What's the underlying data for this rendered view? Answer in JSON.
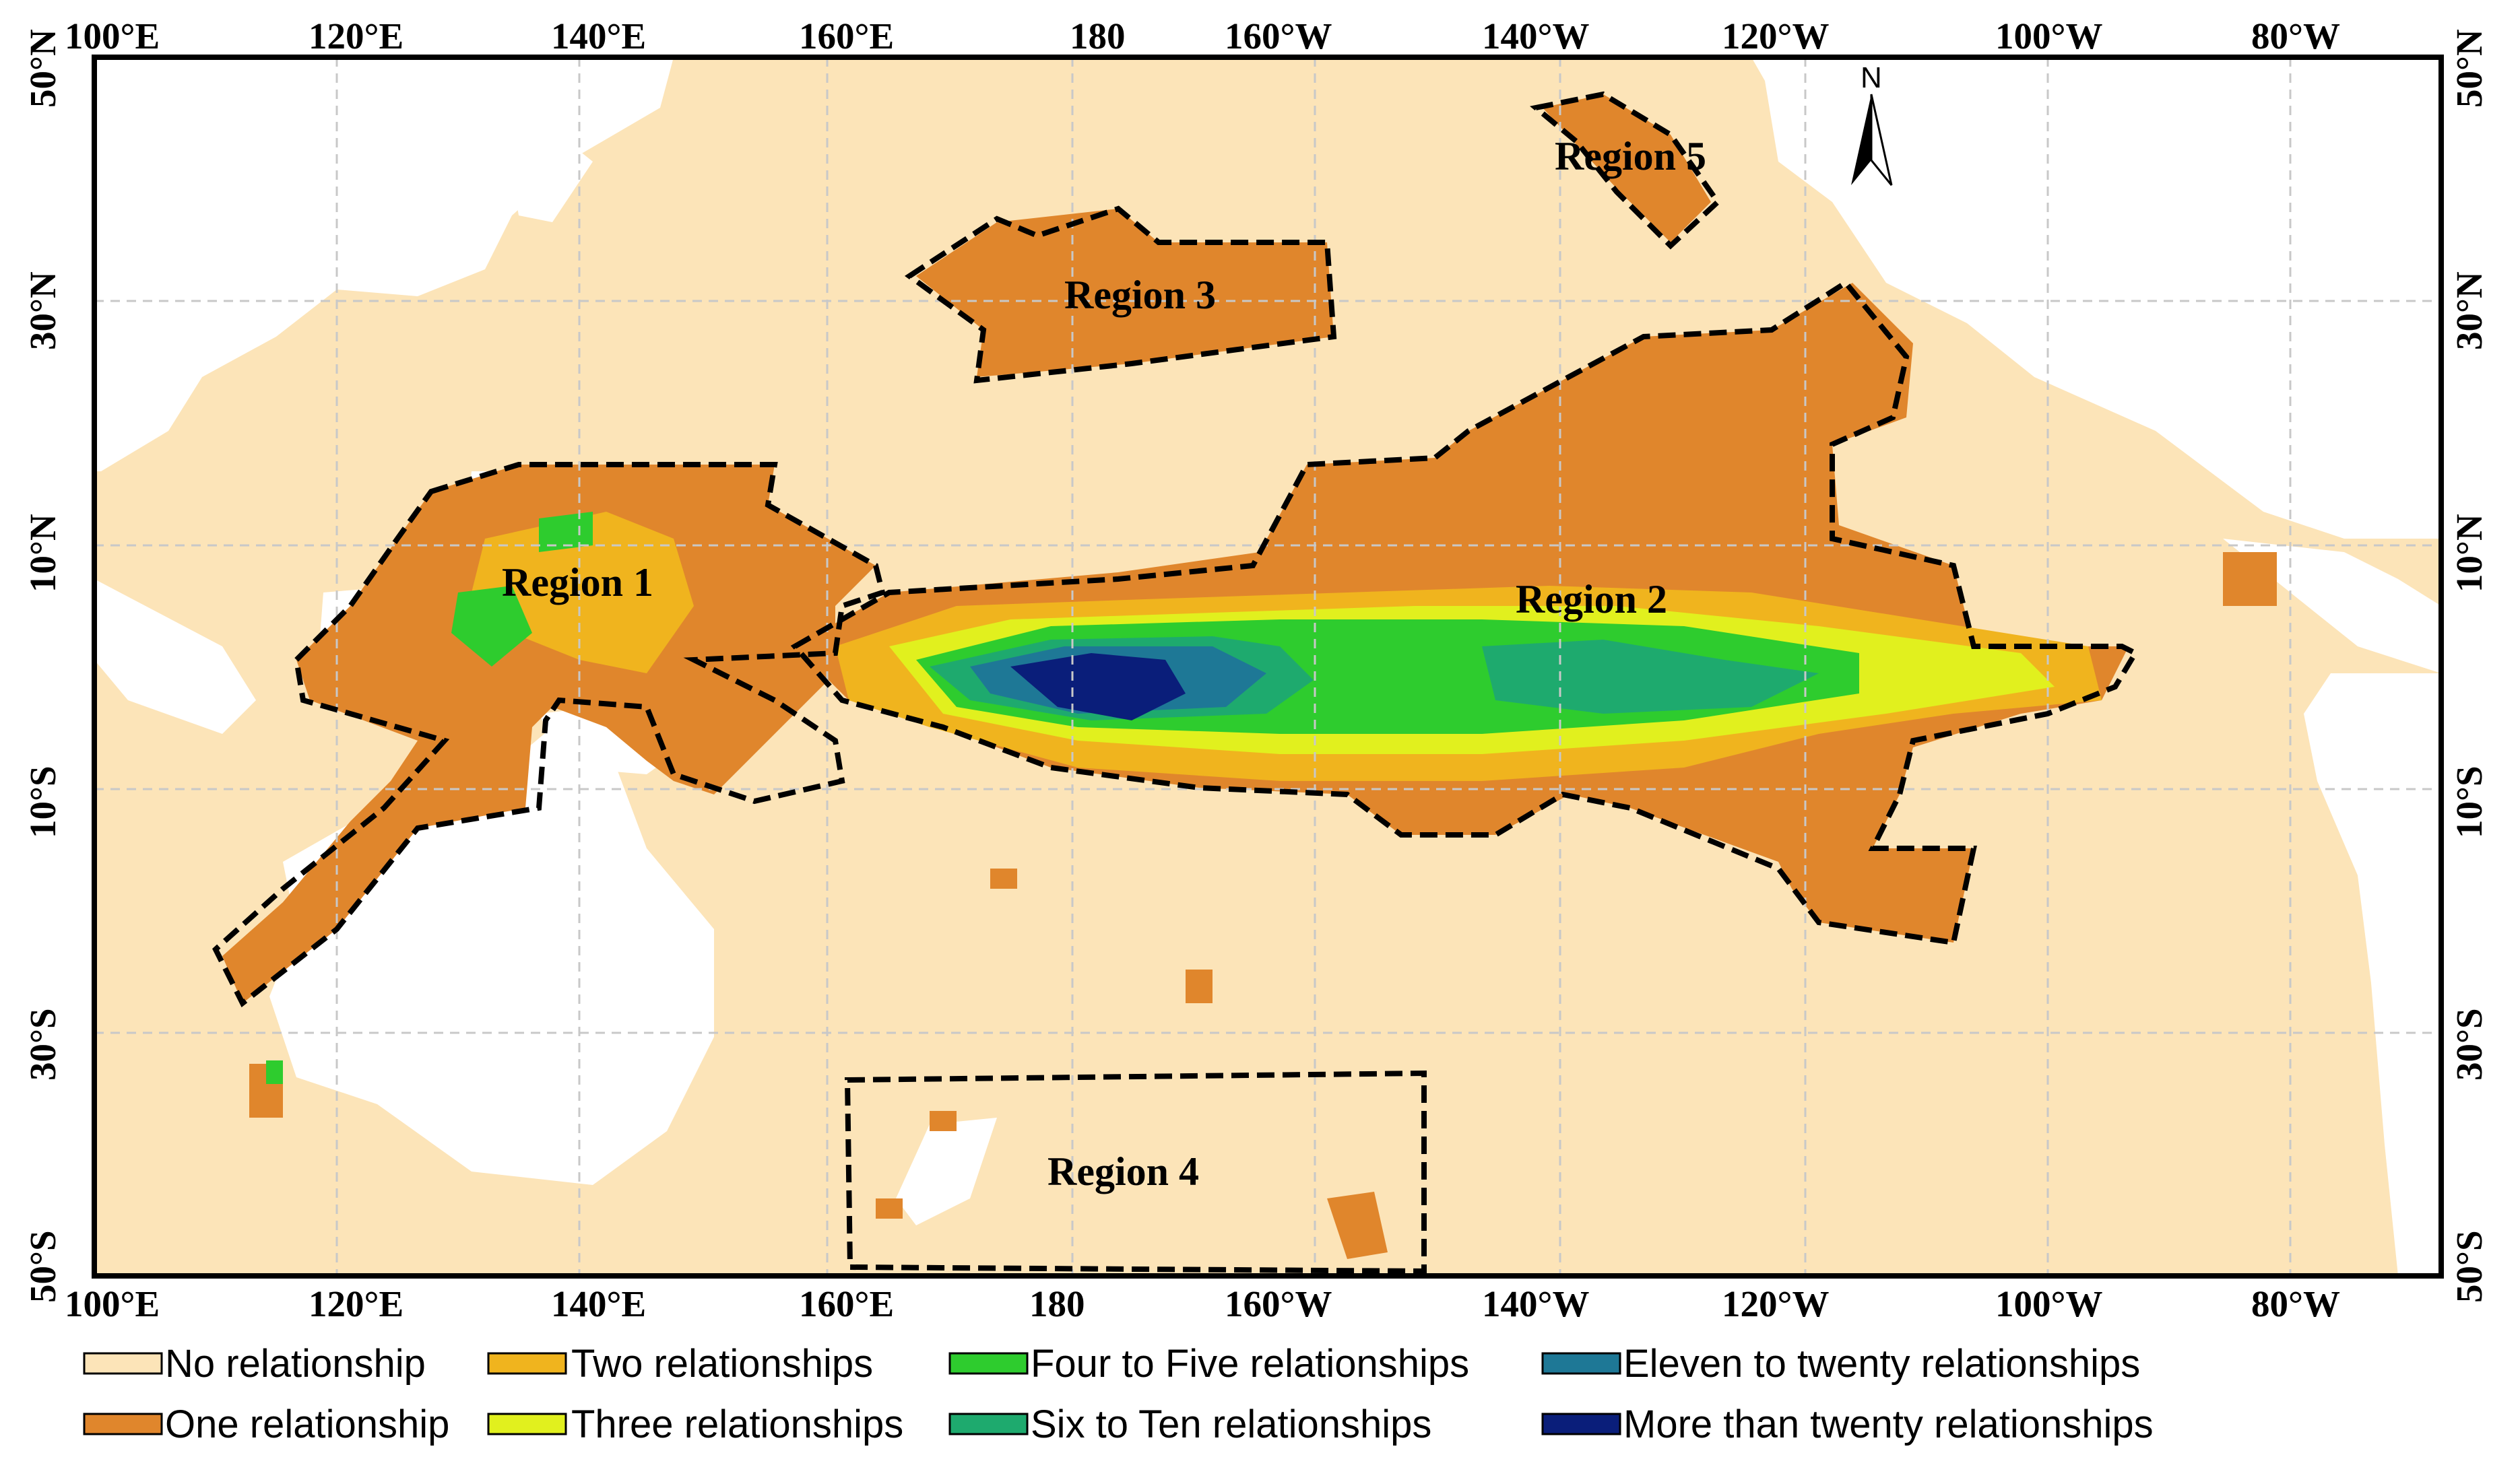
{
  "map": {
    "ticks": {
      "lon": [
        "100°E",
        "120°E",
        "140°E",
        "160°E",
        "180",
        "160°W",
        "140°W",
        "120°W",
        "100°W",
        "80°W"
      ],
      "lat": [
        "50°N",
        "30°N",
        "10°N",
        "10°S",
        "30°S",
        "50°S"
      ]
    },
    "north_arrow": "N",
    "regions": [
      "Region 1",
      "Region 2",
      "Region 3",
      "Region 4",
      "Region 5"
    ]
  },
  "legend": {
    "items": [
      {
        "label": "No relationship",
        "color": "#fce4b8"
      },
      {
        "label": "Two relationships",
        "color": "#f0b41e"
      },
      {
        "label": "Four to Five  relationships",
        "color": "#2ecc2e"
      },
      {
        "label": "Eleven to twenty relationships",
        "color": "#1e7896"
      },
      {
        "label": "One relationship",
        "color": "#e0862c"
      },
      {
        "label": "Three relationships",
        "color": "#e1f01e"
      },
      {
        "label": "Six to Ten  relationships",
        "color": "#1eaa6e"
      },
      {
        "label": "More than  twenty relationships",
        "color": "#0a1e7a"
      }
    ]
  },
  "colors": {
    "land": "#ffffff",
    "frame": "#000000",
    "grid": "#c8c8c8"
  }
}
